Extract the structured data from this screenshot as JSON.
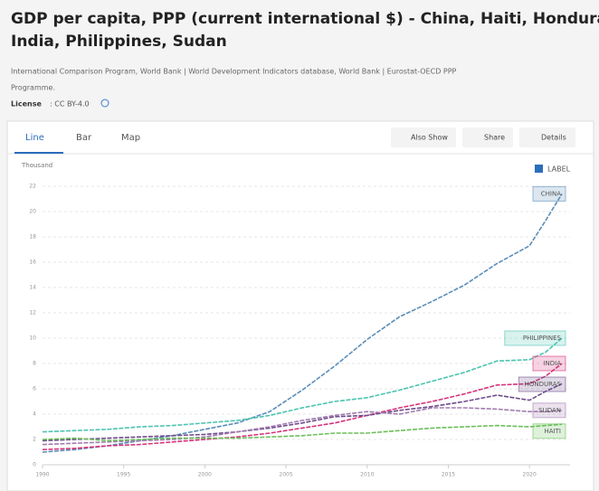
{
  "header": {
    "title": [
      "GDP per capita, PPP (current international $) - China, Haiti, Honduras,",
      "India, Philippines, Sudan"
    ],
    "source": [
      "International Comparison Program, World Bank | World Development Indicators database, World Bank | Eurostat-OECD PPP",
      "Programme."
    ],
    "license_label": "License",
    "license": ": CC BY-4.0"
  },
  "tabs": [
    "Line",
    "Bar",
    "Map"
  ],
  "buttons": [
    "Also Show",
    "Share",
    "Details"
  ],
  "chart_data": {
    "type": "line",
    "y_label": "Thousand",
    "label_toggle": "LABEL",
    "x": [
      1990,
      1992,
      1994,
      1996,
      1998,
      2000,
      2002,
      2004,
      2006,
      2008,
      2010,
      2012,
      2014,
      2016,
      2018,
      2020,
      2021,
      2022
    ],
    "xlim": [
      1990,
      2022.5
    ],
    "xticks": [
      1990,
      1995,
      2000,
      2005,
      2010,
      2015,
      2020
    ],
    "ylim": [
      0,
      22
    ],
    "yticks": [
      0,
      2,
      4,
      6,
      8,
      10,
      12,
      14,
      16,
      18,
      20,
      22
    ],
    "grid": true,
    "series": [
      {
        "name": "CHINA",
        "color": "#5b8db8",
        "values": [
          1.0,
          1.2,
          1.5,
          1.9,
          2.3,
          2.8,
          3.3,
          4.2,
          5.9,
          7.8,
          9.9,
          11.7,
          12.9,
          14.2,
          15.9,
          17.3,
          19.3,
          21.4
        ]
      },
      {
        "name": "PHILIPPINES",
        "color": "#4cc4b0",
        "values": [
          2.6,
          2.7,
          2.8,
          3.0,
          3.1,
          3.3,
          3.5,
          3.9,
          4.5,
          5.0,
          5.3,
          5.9,
          6.6,
          7.3,
          8.2,
          8.3,
          8.9,
          10.0
        ]
      },
      {
        "name": "INDIA",
        "color": "#d6337a",
        "values": [
          1.2,
          1.3,
          1.5,
          1.6,
          1.8,
          2.0,
          2.2,
          2.5,
          2.9,
          3.3,
          3.9,
          4.5,
          5.0,
          5.6,
          6.3,
          6.4,
          7.0,
          8.0
        ]
      },
      {
        "name": "HONDURAS",
        "color": "#6d4c8a",
        "values": [
          1.9,
          2.0,
          2.1,
          2.2,
          2.3,
          2.4,
          2.6,
          2.9,
          3.3,
          3.8,
          3.9,
          4.3,
          4.6,
          5.0,
          5.5,
          5.1,
          5.8,
          6.4
        ]
      },
      {
        "name": "SUDAN",
        "color": "#a27cb0",
        "values": [
          1.6,
          1.7,
          1.8,
          1.9,
          2.0,
          2.2,
          2.6,
          3.0,
          3.5,
          3.9,
          4.2,
          4.0,
          4.5,
          4.5,
          4.4,
          4.2,
          4.2,
          4.3
        ]
      },
      {
        "name": "HAITI",
        "color": "#6bbf59",
        "values": [
          2.0,
          2.1,
          1.9,
          2.0,
          2.1,
          2.1,
          2.1,
          2.2,
          2.3,
          2.5,
          2.5,
          2.7,
          2.9,
          3.0,
          3.1,
          3.0,
          3.1,
          3.2
        ]
      }
    ]
  }
}
